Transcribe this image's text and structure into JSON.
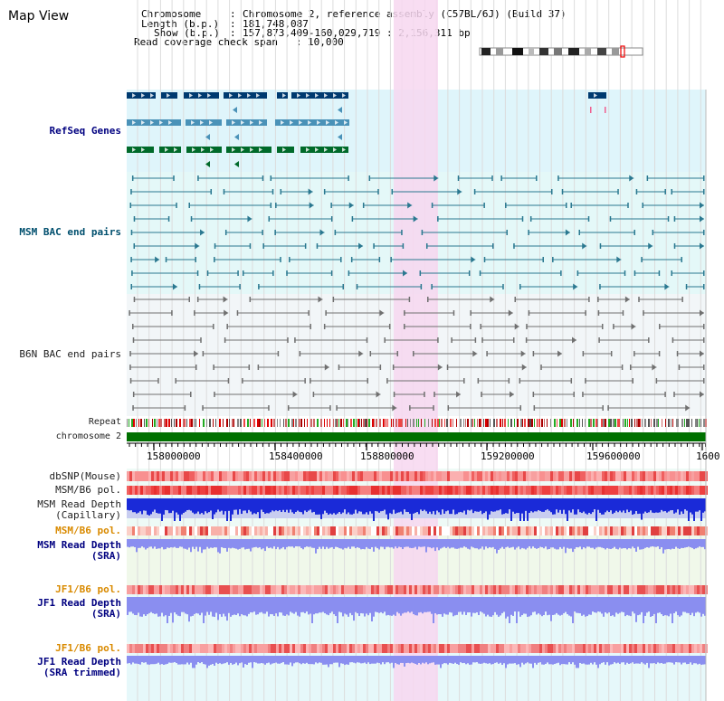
{
  "title": "Map View",
  "info": {
    "chromosome_label": "Chromosome",
    "chromosome_value": "Chromosome 2, reference assembly (C57BL/6J) (Build 37)",
    "length_label": "Length (b.p.)",
    "length_value": "181,748,087",
    "show_label": "Show (b.p.)",
    "show_value": "157,873,409-160,029,719 : 2,156,311 bp",
    "coverage_label": "Read coverage check span",
    "coverage_value": "10,000"
  },
  "tracks": {
    "refseq": "RefSeq Genes",
    "msm_bac": "MSM BAC end pairs",
    "b6n_bac": "B6N BAC end pairs",
    "repeat": "Repeat",
    "chromosome": "chromosome 2",
    "dbsnp": "dbSNP(Mouse)",
    "msm_b6_pol": "MSM/B6 pol.",
    "msm_depth_cap": "MSM Read Depth",
    "msm_depth_cap_sub": "(Capillary)",
    "msm_b6_pol2": "MSM/B6 pol.",
    "msm_depth_sra": "MSM Read Depth",
    "msm_depth_sra_sub": "(SRA)",
    "jf1_pol": "JF1/B6 pol.",
    "jf1_depth": "JF1 Read Depth",
    "jf1_depth_sub": "(SRA)",
    "jf1_pol2": "JF1/B6 pol.",
    "jf1_depth_trim": "JF1 Read Depth",
    "jf1_depth_trim_sub": "(SRA trimmed)"
  },
  "axis_ticks": [
    "158000000",
    "158400000",
    "158800000",
    "159200000",
    "159600000",
    "1600"
  ],
  "colors": {
    "refseq_bg": "#dff5fb",
    "msm_bg": "#e4f8f8",
    "b6n_bg": "#f2f6f8",
    "highlight": "#f7d7f0",
    "chromosome": "#007000",
    "refseq_dark": "#003a70",
    "refseq_mid": "#4a92b8",
    "refseq_green": "#006a2a",
    "msm_pair": "#2a7890",
    "b6n_pair": "#707070",
    "depth_blue": "#1a2ad8",
    "depth_sra": "#8a8ef0"
  }
}
